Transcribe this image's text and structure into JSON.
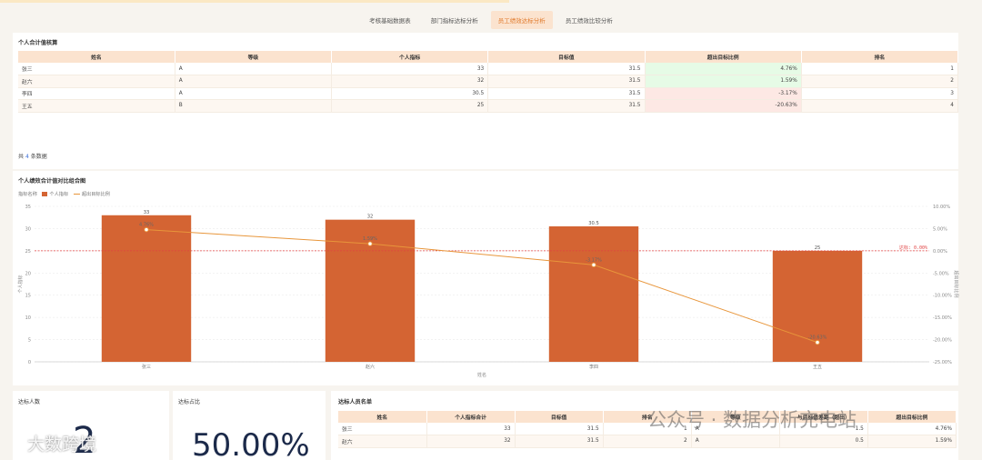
{
  "tabs": [
    {
      "label": "考核基础数据表",
      "active": false
    },
    {
      "label": "部门指标达标分析",
      "active": false
    },
    {
      "label": "员工绩效达标分析",
      "active": true
    },
    {
      "label": "员工绩效比较分析",
      "active": false
    }
  ],
  "summary_table": {
    "title": "个人合计值核算",
    "headers": [
      "姓名",
      "等级",
      "个人指标",
      "目标值",
      "超出目标比例",
      "排名"
    ],
    "rows": [
      [
        "张三",
        "A",
        "33",
        "31.5",
        "4.76%",
        "1"
      ],
      [
        "赵六",
        "A",
        "32",
        "31.5",
        "1.59%",
        "2"
      ],
      [
        "李四",
        "A",
        "30.5",
        "31.5",
        "-3.17%",
        "3"
      ],
      [
        "王五",
        "B",
        "25",
        "31.5",
        "-20.63%",
        "4"
      ]
    ],
    "count_prefix": "共",
    "count": "4",
    "count_suffix": "条数据"
  },
  "chart_title": "个人绩效合计值对比组合图",
  "legend": {
    "title": "指标名称",
    "bar": "个人指标",
    "line": "超出目标比例"
  },
  "chart_data": {
    "type": "bar",
    "categories": [
      "张三",
      "赵六",
      "李四",
      "王五"
    ],
    "series": [
      {
        "name": "个人指标",
        "type": "bar",
        "values": [
          33,
          32,
          30.5,
          25
        ],
        "labels": [
          "33",
          "32",
          "30.5",
          "25"
        ]
      },
      {
        "name": "超出目标比例",
        "type": "line",
        "values": [
          4.76,
          1.59,
          -3.17,
          -20.63
        ],
        "labels": [
          "4.76%",
          "1.59%",
          "-3.17%",
          "-20.63%"
        ]
      }
    ],
    "xlabel": "姓名",
    "ylabel": "个人指标",
    "y2label": "超出目标比例",
    "ylim": [
      0,
      35
    ],
    "yticks": [
      "0",
      "5",
      "10",
      "15",
      "20",
      "25",
      "30",
      "35"
    ],
    "y2lim": [
      -25,
      10
    ],
    "y2ticks": [
      "-25.00%",
      "-20.00%",
      "-15.00%",
      "-10.00%",
      "-5.00%",
      "0.00%",
      "5.00%",
      "10.00%"
    ],
    "reference_line": {
      "label": "达标: 0.00%",
      "value": 0
    },
    "colors": {
      "bar": "#d46433",
      "line": "#e8963b",
      "reference": "#e04040"
    },
    "grid": true,
    "legend_position": "top-left"
  },
  "kpis": [
    {
      "title": "达标人数",
      "value": "2"
    },
    {
      "title": "达标占比",
      "value": "50.00%"
    }
  ],
  "roster": {
    "title": "达标人员名单",
    "headers": [
      "姓名",
      "个人指标合计",
      "目标值",
      "排名",
      "等级",
      "与目标值差距（超出）",
      "超出目标比例"
    ],
    "rows": [
      [
        "张三",
        "33",
        "31.5",
        "1",
        "A",
        "1.5",
        "4.76%"
      ],
      [
        "赵六",
        "32",
        "31.5",
        "2",
        "A",
        "0.5",
        "1.59%"
      ]
    ]
  },
  "watermark": {
    "left": "大数跨境",
    "right": "公众号 · 数据分析充电站"
  }
}
